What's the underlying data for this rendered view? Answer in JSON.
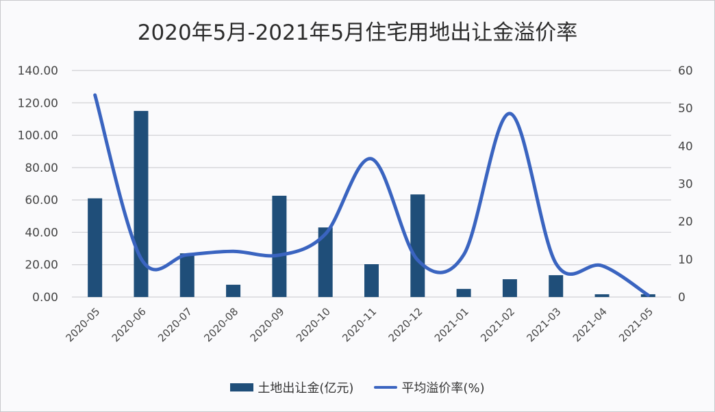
{
  "chart_data": {
    "type": "bar+line",
    "title": "2020年5月-2021年5月住宅用地出让金溢价率",
    "categories": [
      "2020-05",
      "2020-06",
      "2020-07",
      "2020-08",
      "2020-09",
      "2020-10",
      "2020-11",
      "2020-12",
      "2021-01",
      "2021-02",
      "2021-03",
      "2021-04",
      "2021-05"
    ],
    "series": [
      {
        "name": "土地出让金(亿元)",
        "type": "bar",
        "axis": "left",
        "color": "#1f4e79",
        "values": [
          61.0,
          115.0,
          27.0,
          7.6,
          62.6,
          43.0,
          20.3,
          63.4,
          5.0,
          11.0,
          13.5,
          1.7,
          1.7
        ]
      },
      {
        "name": "平均溢价率(%)",
        "type": "line",
        "smooth": true,
        "axis": "right",
        "color": "#3a64c0",
        "values": [
          53.5,
          10.2,
          11.2,
          12.1,
          11.1,
          16.7,
          36.6,
          9.8,
          11.2,
          48.6,
          8.9,
          8.3,
          0.5
        ]
      }
    ],
    "left_axis": {
      "ticks": [
        "0.00",
        "20.00",
        "40.00",
        "60.00",
        "80.00",
        "100.00",
        "120.00",
        "140.00"
      ],
      "ylim": [
        0,
        140
      ]
    },
    "right_axis": {
      "ticks": [
        "0",
        "10",
        "20",
        "30",
        "40",
        "50",
        "60"
      ],
      "ylim": [
        0,
        60
      ]
    },
    "grid": true,
    "legend_position": "bottom",
    "xlabel": "",
    "ylabel": ""
  },
  "legend": {
    "bar_label": "土地出让金(亿元)",
    "line_label": "平均溢价率(%)"
  }
}
